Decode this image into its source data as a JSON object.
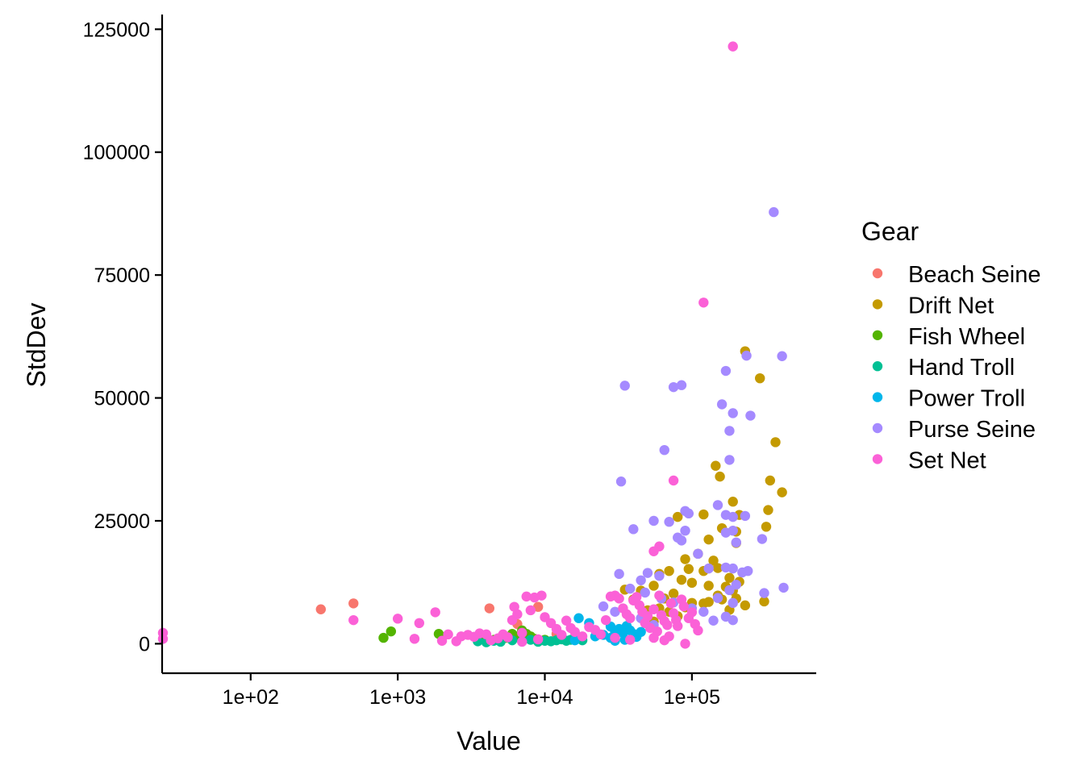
{
  "chart_data": {
    "type": "scatter",
    "xlabel": "Value",
    "ylabel": "StdDev",
    "x_scale": "log10",
    "xlim": [
      25,
      700000
    ],
    "ylim": [
      -6000,
      128000
    ],
    "x_ticks": [
      100,
      1000,
      10000,
      100000
    ],
    "x_tick_labels": [
      "1e+02",
      "1e+03",
      "1e+04",
      "1e+05"
    ],
    "y_ticks": [
      0,
      25000,
      50000,
      75000,
      100000,
      125000
    ],
    "y_tick_labels": [
      "0",
      "25000",
      "50000",
      "75000",
      "100000",
      "125000"
    ],
    "grid": false,
    "legend_title": "Gear",
    "legend_position": "right",
    "series": [
      {
        "name": "Beach Seine",
        "color": "#F8766D",
        "points": [
          [
            300,
            7000
          ],
          [
            500,
            8200
          ],
          [
            4200,
            7200
          ],
          [
            9000,
            7500
          ],
          [
            6500,
            4000
          ],
          [
            12000,
            2000
          ]
        ]
      },
      {
        "name": "Drift Net",
        "color": "#C49A00",
        "points": [
          [
            230000,
            59500
          ],
          [
            290000,
            54000
          ],
          [
            370000,
            41000
          ],
          [
            340000,
            33200
          ],
          [
            410000,
            30800
          ],
          [
            330000,
            27200
          ],
          [
            320000,
            23800
          ],
          [
            145000,
            36200
          ],
          [
            155000,
            34000
          ],
          [
            190000,
            28900
          ],
          [
            210000,
            26200
          ],
          [
            200000,
            22800
          ],
          [
            200000,
            20500
          ],
          [
            120000,
            26300
          ],
          [
            80000,
            25800
          ],
          [
            130000,
            21200
          ],
          [
            160000,
            23500
          ],
          [
            110000,
            18300
          ],
          [
            140000,
            16900
          ],
          [
            90000,
            17200
          ],
          [
            95000,
            15200
          ],
          [
            150000,
            15400
          ],
          [
            120000,
            14800
          ],
          [
            180000,
            13400
          ],
          [
            210000,
            12600
          ],
          [
            70000,
            14800
          ],
          [
            60000,
            14200
          ],
          [
            85000,
            13000
          ],
          [
            100000,
            12400
          ],
          [
            130000,
            11800
          ],
          [
            170000,
            11600
          ],
          [
            190000,
            10800
          ],
          [
            150000,
            9800
          ],
          [
            200000,
            9200
          ],
          [
            160000,
            9000
          ],
          [
            230000,
            7800
          ],
          [
            310000,
            8600
          ],
          [
            180000,
            6900
          ],
          [
            100000,
            8300
          ],
          [
            120000,
            8200
          ],
          [
            130000,
            8500
          ],
          [
            90000,
            7400
          ],
          [
            75000,
            10200
          ],
          [
            65000,
            9200
          ],
          [
            55000,
            11800
          ],
          [
            45000,
            10800
          ],
          [
            40000,
            9000
          ],
          [
            60000,
            7200
          ],
          [
            70000,
            6500
          ],
          [
            80000,
            5600
          ],
          [
            35000,
            11000
          ],
          [
            50000,
            6800
          ],
          [
            55000,
            4500
          ]
        ]
      },
      {
        "name": "Fish Wheel",
        "color": "#53B400",
        "points": [
          [
            800,
            1200
          ],
          [
            900,
            2500
          ],
          [
            1900,
            2000
          ],
          [
            4000,
            1300
          ],
          [
            4500,
            800
          ],
          [
            5500,
            1200
          ],
          [
            6000,
            2000
          ],
          [
            6500,
            1500
          ],
          [
            7000,
            2700
          ],
          [
            7500,
            2000
          ],
          [
            8000,
            1500
          ],
          [
            8500,
            1000
          ],
          [
            9000,
            700
          ],
          [
            10000,
            800
          ],
          [
            5000,
            500
          ]
        ]
      },
      {
        "name": "Hand Troll",
        "color": "#00C094",
        "points": [
          [
            3500,
            500
          ],
          [
            4000,
            300
          ],
          [
            4500,
            600
          ],
          [
            5000,
            400
          ],
          [
            6000,
            700
          ],
          [
            7000,
            500
          ],
          [
            8000,
            800
          ],
          [
            9000,
            400
          ],
          [
            10000,
            600
          ],
          [
            11000,
            500
          ],
          [
            12000,
            700
          ],
          [
            13000,
            900
          ],
          [
            14000,
            600
          ],
          [
            15000,
            800
          ],
          [
            18000,
            700
          ]
        ]
      },
      {
        "name": "Power Troll",
        "color": "#00B6EB",
        "points": [
          [
            17000,
            5200
          ],
          [
            20000,
            4200
          ],
          [
            28000,
            3500
          ],
          [
            32000,
            3000
          ],
          [
            36000,
            3600
          ],
          [
            30000,
            2500
          ],
          [
            34000,
            2200
          ],
          [
            38000,
            2700
          ],
          [
            40000,
            2000
          ],
          [
            45000,
            2400
          ],
          [
            25000,
            1800
          ],
          [
            22000,
            1500
          ],
          [
            35000,
            800
          ],
          [
            16000,
            700
          ],
          [
            28000,
            1200
          ],
          [
            30000,
            600
          ],
          [
            42000,
            1400
          ]
        ]
      },
      {
        "name": "Purse Seine",
        "color": "#A58AFF",
        "points": [
          [
            360000,
            87800
          ],
          [
            235000,
            58600
          ],
          [
            410000,
            58500
          ],
          [
            170000,
            55500
          ],
          [
            190000,
            46900
          ],
          [
            250000,
            46400
          ],
          [
            160000,
            48700
          ],
          [
            180000,
            43300
          ],
          [
            35000,
            52500
          ],
          [
            75000,
            52200
          ],
          [
            85000,
            52600
          ],
          [
            33000,
            33000
          ],
          [
            65000,
            39400
          ],
          [
            180000,
            37400
          ],
          [
            150000,
            28200
          ],
          [
            230000,
            26000
          ],
          [
            170000,
            26200
          ],
          [
            190000,
            25800
          ],
          [
            90000,
            27000
          ],
          [
            95000,
            26500
          ],
          [
            40000,
            23300
          ],
          [
            55000,
            25000
          ],
          [
            70000,
            24800
          ],
          [
            80000,
            21600
          ],
          [
            85000,
            21000
          ],
          [
            90000,
            23000
          ],
          [
            300000,
            21300
          ],
          [
            200000,
            20600
          ],
          [
            190000,
            23000
          ],
          [
            170000,
            22600
          ],
          [
            110000,
            18300
          ],
          [
            130000,
            15300
          ],
          [
            170000,
            15500
          ],
          [
            190000,
            15300
          ],
          [
            220000,
            14500
          ],
          [
            240000,
            14800
          ],
          [
            420000,
            11400
          ],
          [
            310000,
            10300
          ],
          [
            150000,
            9300
          ],
          [
            180000,
            10900
          ],
          [
            200000,
            12000
          ],
          [
            190000,
            8300
          ],
          [
            170000,
            5500
          ],
          [
            190000,
            4800
          ],
          [
            140000,
            4700
          ],
          [
            50000,
            14400
          ],
          [
            32000,
            14200
          ],
          [
            60000,
            13800
          ],
          [
            45000,
            12900
          ],
          [
            38000,
            11200
          ],
          [
            25000,
            7600
          ],
          [
            30000,
            6500
          ],
          [
            48000,
            10400
          ],
          [
            62000,
            9200
          ],
          [
            75000,
            8400
          ],
          [
            100000,
            7200
          ],
          [
            120000,
            6500
          ],
          [
            45000,
            5200
          ],
          [
            55000,
            3800
          ]
        ]
      },
      {
        "name": "Set Net",
        "color": "#FB61D7",
        "points": [
          [
            190000,
            121500
          ],
          [
            120000,
            69400
          ],
          [
            75000,
            33200
          ],
          [
            60000,
            19800
          ],
          [
            55000,
            18800
          ],
          [
            25,
            2200
          ],
          [
            25,
            1000
          ],
          [
            500,
            4800
          ],
          [
            1000,
            5100
          ],
          [
            1300,
            1000
          ],
          [
            1400,
            4200
          ],
          [
            1800,
            6400
          ],
          [
            2000,
            600
          ],
          [
            2200,
            1900
          ],
          [
            2500,
            500
          ],
          [
            2700,
            1500
          ],
          [
            3000,
            1800
          ],
          [
            3300,
            1400
          ],
          [
            3600,
            2100
          ],
          [
            4000,
            1900
          ],
          [
            4300,
            700
          ],
          [
            4800,
            1100
          ],
          [
            5200,
            1900
          ],
          [
            5600,
            1300
          ],
          [
            6000,
            4800
          ],
          [
            6200,
            7500
          ],
          [
            6500,
            6000
          ],
          [
            7000,
            2200
          ],
          [
            7500,
            9600
          ],
          [
            8000,
            6800
          ],
          [
            8500,
            9400
          ],
          [
            9500,
            9800
          ],
          [
            10000,
            5400
          ],
          [
            11000,
            4200
          ],
          [
            12000,
            3000
          ],
          [
            13000,
            1800
          ],
          [
            14000,
            4700
          ],
          [
            15000,
            3200
          ],
          [
            16000,
            2400
          ],
          [
            18000,
            1500
          ],
          [
            20000,
            3400
          ],
          [
            22000,
            2800
          ],
          [
            24000,
            1900
          ],
          [
            26000,
            4800
          ],
          [
            28000,
            9600
          ],
          [
            30000,
            9800
          ],
          [
            32000,
            9200
          ],
          [
            34000,
            7200
          ],
          [
            36000,
            6000
          ],
          [
            38000,
            5200
          ],
          [
            40000,
            8800
          ],
          [
            42000,
            9500
          ],
          [
            44000,
            7800
          ],
          [
            46000,
            6500
          ],
          [
            48000,
            4200
          ],
          [
            50000,
            5600
          ],
          [
            52000,
            3200
          ],
          [
            55000,
            7000
          ],
          [
            58000,
            2500
          ],
          [
            60000,
            9800
          ],
          [
            62000,
            5800
          ],
          [
            65000,
            4600
          ],
          [
            68000,
            3800
          ],
          [
            70000,
            1500
          ],
          [
            72000,
            8200
          ],
          [
            75000,
            6200
          ],
          [
            78000,
            4800
          ],
          [
            80000,
            3600
          ],
          [
            85000,
            9000
          ],
          [
            88000,
            7600
          ],
          [
            90000,
            0
          ],
          [
            95000,
            5200
          ],
          [
            100000,
            6400
          ],
          [
            105000,
            4000
          ],
          [
            110000,
            2700
          ],
          [
            30000,
            1200
          ],
          [
            38000,
            800
          ],
          [
            55000,
            1200
          ],
          [
            65000,
            700
          ],
          [
            7000,
            400
          ],
          [
            9000,
            900
          ]
        ]
      }
    ]
  }
}
